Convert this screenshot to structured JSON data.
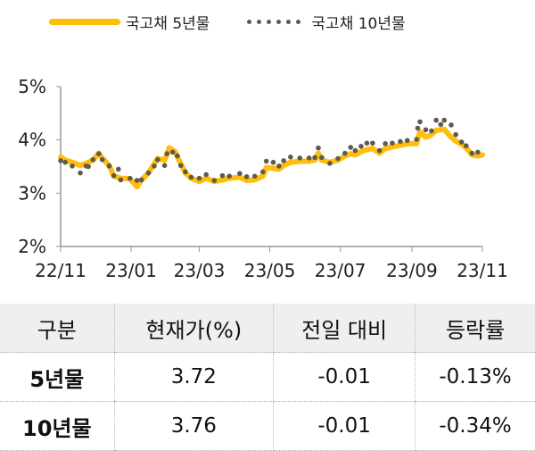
{
  "chart_data": {
    "type": "line",
    "title": "",
    "xlabel": "",
    "ylabel": "",
    "ylim": [
      2,
      5
    ],
    "yticks": [
      "2%",
      "3%",
      "4%",
      "5%"
    ],
    "xlim": [
      "2022-11-01",
      "2023-11-01"
    ],
    "xticks": [
      {
        "date": "2022-11-01",
        "label": "22/11"
      },
      {
        "date": "2023-01-01",
        "label": "23/01"
      },
      {
        "date": "2023-03-01",
        "label": "23/03"
      },
      {
        "date": "2023-05-01",
        "label": "23/05"
      },
      {
        "date": "2023-07-01",
        "label": "23/07"
      },
      {
        "date": "2023-09-01",
        "label": "23/09"
      },
      {
        "date": "2023-11-01",
        "label": "23/11"
      }
    ],
    "grid": false,
    "legend_position": "top",
    "series": [
      {
        "name": "국고채 5년물",
        "style": "solid",
        "color": "#FFBE0B",
        "x": [
          "2022-11-01",
          "2022-11-05",
          "2022-11-11",
          "2022-11-18",
          "2022-11-23",
          "2022-11-29",
          "2022-12-04",
          "2022-12-07",
          "2022-12-13",
          "2022-12-17",
          "2022-12-23",
          "2022-12-31",
          "2023-01-06",
          "2023-01-10",
          "2023-01-16",
          "2023-01-21",
          "2023-01-24",
          "2023-01-30",
          "2023-02-03",
          "2023-02-08",
          "2023-02-13",
          "2023-02-17",
          "2023-02-22",
          "2023-03-01",
          "2023-03-07",
          "2023-03-14",
          "2023-03-21",
          "2023-03-27",
          "2023-04-05",
          "2023-04-11",
          "2023-04-18",
          "2023-04-25",
          "2023-04-28",
          "2023-05-04",
          "2023-05-09",
          "2023-05-13",
          "2023-05-19",
          "2023-05-27",
          "2023-06-04",
          "2023-06-09",
          "2023-06-12",
          "2023-06-15",
          "2023-06-22",
          "2023-06-29",
          "2023-07-05",
          "2023-07-10",
          "2023-07-14",
          "2023-07-19",
          "2023-07-24",
          "2023-07-29",
          "2023-08-04",
          "2023-08-09",
          "2023-08-15",
          "2023-08-22",
          "2023-08-28",
          "2023-09-05",
          "2023-09-08",
          "2023-09-13",
          "2023-09-18",
          "2023-09-22",
          "2023-09-29",
          "2023-10-05",
          "2023-10-09",
          "2023-10-14",
          "2023-10-18",
          "2023-10-23",
          "2023-10-28",
          "2023-11-01"
        ],
        "y": [
          3.68,
          3.62,
          3.58,
          3.52,
          3.56,
          3.62,
          3.75,
          3.66,
          3.52,
          3.32,
          3.28,
          3.27,
          3.12,
          3.25,
          3.38,
          3.55,
          3.65,
          3.62,
          3.85,
          3.78,
          3.55,
          3.38,
          3.28,
          3.22,
          3.28,
          3.22,
          3.25,
          3.28,
          3.3,
          3.24,
          3.25,
          3.32,
          3.48,
          3.47,
          3.45,
          3.52,
          3.58,
          3.6,
          3.6,
          3.62,
          3.75,
          3.62,
          3.58,
          3.62,
          3.7,
          3.74,
          3.72,
          3.78,
          3.82,
          3.84,
          3.75,
          3.84,
          3.87,
          3.9,
          3.93,
          3.93,
          4.15,
          4.05,
          4.1,
          4.18,
          4.2,
          4.05,
          3.98,
          3.92,
          3.85,
          3.72,
          3.7,
          3.72
        ]
      },
      {
        "name": "국고채 10년물",
        "style": "dotted",
        "color": "#5E5A4E",
        "x": [
          "2022-11-01",
          "2022-11-05",
          "2022-11-11",
          "2022-11-18",
          "2022-11-23",
          "2022-11-25",
          "2022-11-29",
          "2022-12-04",
          "2022-12-07",
          "2022-12-13",
          "2022-12-17",
          "2022-12-21",
          "2022-12-23",
          "2022-12-31",
          "2023-01-06",
          "2023-01-10",
          "2023-01-16",
          "2023-01-21",
          "2023-01-24",
          "2023-01-30",
          "2023-02-01",
          "2023-02-06",
          "2023-02-10",
          "2023-02-13",
          "2023-02-17",
          "2023-02-22",
          "2023-03-01",
          "2023-03-07",
          "2023-03-14",
          "2023-03-21",
          "2023-03-27",
          "2023-04-05",
          "2023-04-11",
          "2023-04-18",
          "2023-04-25",
          "2023-04-28",
          "2023-05-04",
          "2023-05-09",
          "2023-05-13",
          "2023-05-19",
          "2023-05-27",
          "2023-06-04",
          "2023-06-09",
          "2023-06-12",
          "2023-06-15",
          "2023-06-22",
          "2023-06-29",
          "2023-07-05",
          "2023-07-10",
          "2023-07-14",
          "2023-07-19",
          "2023-07-24",
          "2023-07-29",
          "2023-08-04",
          "2023-08-09",
          "2023-08-15",
          "2023-08-22",
          "2023-08-28",
          "2023-09-05",
          "2023-09-06",
          "2023-09-08",
          "2023-09-13",
          "2023-09-18",
          "2023-09-22",
          "2023-09-26",
          "2023-09-29",
          "2023-10-05",
          "2023-10-09",
          "2023-10-14",
          "2023-10-18",
          "2023-10-23",
          "2023-10-28"
        ],
        "y": [
          3.61,
          3.58,
          3.51,
          3.38,
          3.51,
          3.5,
          3.63,
          3.74,
          3.63,
          3.51,
          3.33,
          3.45,
          3.25,
          3.28,
          3.24,
          3.25,
          3.38,
          3.51,
          3.63,
          3.52,
          3.74,
          3.77,
          3.7,
          3.52,
          3.4,
          3.3,
          3.28,
          3.35,
          3.24,
          3.33,
          3.32,
          3.37,
          3.31,
          3.32,
          3.4,
          3.6,
          3.58,
          3.51,
          3.61,
          3.68,
          3.66,
          3.66,
          3.67,
          3.85,
          3.67,
          3.56,
          3.65,
          3.75,
          3.86,
          3.8,
          3.88,
          3.94,
          3.94,
          3.8,
          3.93,
          3.94,
          3.97,
          3.99,
          4.01,
          4.22,
          4.34,
          4.19,
          4.17,
          4.37,
          4.29,
          4.37,
          4.28,
          4.1,
          3.96,
          3.89,
          3.75,
          3.77
        ]
      }
    ]
  },
  "table": {
    "headers": [
      "구분",
      "현재가(%)",
      "전일 대비",
      "등락률"
    ],
    "rows": [
      [
        "5년물",
        "3.72",
        "-0.01",
        "-0.13%"
      ],
      [
        "10년물",
        "3.76",
        "-0.01",
        "-0.34%"
      ]
    ]
  }
}
